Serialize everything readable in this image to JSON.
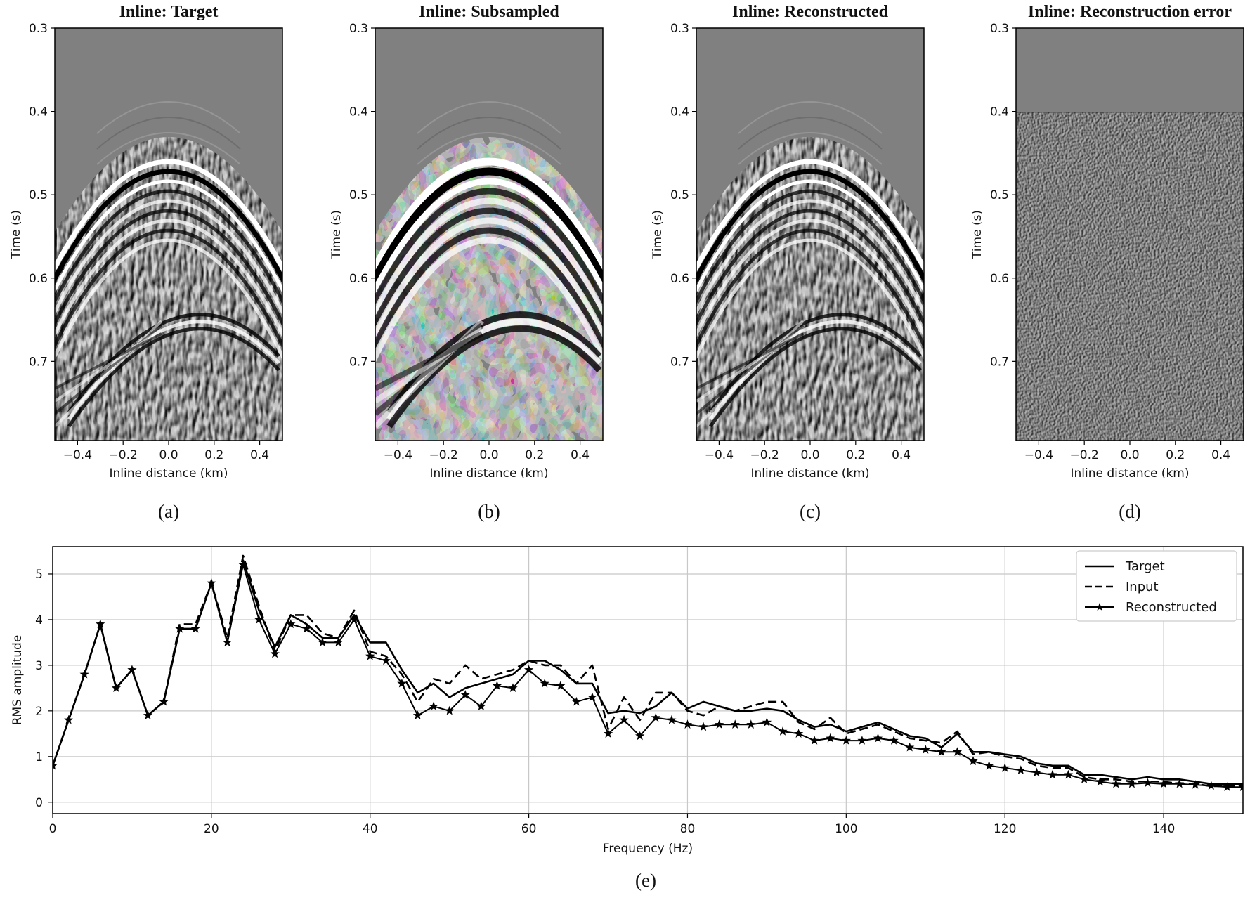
{
  "panels": [
    {
      "id": "a",
      "title": "Inline: Target",
      "caption": "(a)",
      "style": "target"
    },
    {
      "id": "b",
      "title": "Inline: Subsampled",
      "caption": "(b)",
      "style": "subsampled"
    },
    {
      "id": "c",
      "title": "Inline: Reconstructed",
      "caption": "(c)",
      "style": "reconstructed"
    },
    {
      "id": "d",
      "title": "Inline: Reconstruction error",
      "caption": "(d)",
      "style": "error"
    }
  ],
  "panel_axes": {
    "xlabel": "Inline distance (km)",
    "ylabel": "Time (s)",
    "xticks": [
      -0.4,
      -0.2,
      0.0,
      0.2,
      0.4
    ],
    "xtick_labels": [
      "−0.4",
      "−0.2",
      "0.0",
      "0.2",
      "0.4"
    ],
    "yticks": [
      0.3,
      0.4,
      0.5,
      0.6,
      0.7
    ],
    "ytick_labels": [
      "0.3",
      "0.4",
      "0.5",
      "0.6",
      "0.7"
    ],
    "xlim": [
      -0.5,
      0.5
    ],
    "ylim": [
      0.3,
      0.795
    ]
  },
  "chart_data": {
    "type": "line",
    "caption": "(e)",
    "xlabel": "Frequency (Hz)",
    "ylabel": "RMS amplitude",
    "xlim": [
      0,
      150
    ],
    "ylim": [
      -0.25,
      5.6
    ],
    "xticks": [
      0,
      20,
      40,
      60,
      80,
      100,
      120,
      140
    ],
    "yticks": [
      0,
      1,
      2,
      3,
      4,
      5
    ],
    "grid": true,
    "legend_position": "top-right",
    "x": [
      0,
      2,
      4,
      6,
      8,
      10,
      12,
      14,
      16,
      18,
      20,
      22,
      24,
      26,
      28,
      30,
      32,
      34,
      36,
      38,
      40,
      42,
      44,
      46,
      48,
      50,
      52,
      54,
      56,
      58,
      60,
      62,
      64,
      66,
      68,
      70,
      72,
      74,
      76,
      78,
      80,
      82,
      84,
      86,
      88,
      90,
      92,
      94,
      96,
      98,
      100,
      102,
      104,
      106,
      108,
      110,
      112,
      114,
      116,
      118,
      120,
      122,
      124,
      126,
      128,
      130,
      132,
      134,
      136,
      138,
      140,
      142,
      144,
      146,
      148,
      150
    ],
    "series": [
      {
        "name": "Target",
        "style": "solid",
        "values": [
          0.8,
          1.8,
          2.8,
          3.9,
          2.5,
          2.9,
          1.9,
          2.2,
          3.8,
          3.8,
          4.8,
          3.5,
          5.3,
          4.2,
          3.4,
          4.1,
          3.9,
          3.6,
          3.6,
          4.1,
          3.5,
          3.5,
          2.9,
          2.4,
          2.6,
          2.3,
          2.5,
          2.6,
          2.7,
          2.8,
          3.1,
          3.1,
          2.9,
          2.6,
          2.6,
          1.95,
          2.0,
          1.95,
          2.1,
          2.4,
          2.05,
          2.2,
          2.1,
          2.0,
          2.0,
          2.05,
          2.0,
          1.8,
          1.65,
          1.7,
          1.55,
          1.65,
          1.75,
          1.6,
          1.45,
          1.4,
          1.2,
          1.5,
          1.1,
          1.1,
          1.05,
          1.0,
          0.85,
          0.8,
          0.8,
          0.6,
          0.6,
          0.55,
          0.5,
          0.55,
          0.5,
          0.5,
          0.45,
          0.4,
          0.4,
          0.4
        ]
      },
      {
        "name": "Input",
        "style": "dashed",
        "values": [
          0.8,
          1.8,
          2.8,
          3.9,
          2.5,
          2.9,
          1.9,
          2.2,
          3.9,
          3.9,
          4.8,
          3.6,
          5.4,
          4.3,
          3.3,
          4.1,
          4.1,
          3.7,
          3.6,
          4.2,
          3.3,
          3.2,
          2.8,
          2.2,
          2.7,
          2.6,
          3.0,
          2.7,
          2.8,
          2.9,
          3.1,
          3.0,
          3.0,
          2.6,
          3.0,
          1.6,
          2.3,
          1.8,
          2.4,
          2.4,
          2.0,
          1.9,
          2.1,
          2.0,
          2.1,
          2.2,
          2.2,
          1.75,
          1.6,
          1.85,
          1.5,
          1.6,
          1.7,
          1.55,
          1.4,
          1.35,
          1.3,
          1.55,
          1.05,
          1.1,
          1.0,
          0.95,
          0.8,
          0.75,
          0.75,
          0.55,
          0.5,
          0.5,
          0.45,
          0.45,
          0.45,
          0.4,
          0.4,
          0.35,
          0.35,
          0.35
        ]
      },
      {
        "name": "Reconstructed",
        "style": "star",
        "values": [
          0.8,
          1.8,
          2.8,
          3.9,
          2.5,
          2.9,
          1.9,
          2.2,
          3.8,
          3.8,
          4.8,
          3.5,
          5.2,
          4.0,
          3.25,
          3.9,
          3.8,
          3.5,
          3.5,
          4.0,
          3.2,
          3.1,
          2.6,
          1.9,
          2.1,
          2.0,
          2.35,
          2.1,
          2.55,
          2.5,
          2.9,
          2.6,
          2.55,
          2.2,
          2.3,
          1.5,
          1.8,
          1.45,
          1.85,
          1.8,
          1.7,
          1.65,
          1.7,
          1.7,
          1.7,
          1.75,
          1.55,
          1.5,
          1.35,
          1.4,
          1.35,
          1.35,
          1.4,
          1.35,
          1.2,
          1.15,
          1.1,
          1.1,
          0.9,
          0.8,
          0.75,
          0.7,
          0.65,
          0.6,
          0.6,
          0.5,
          0.45,
          0.4,
          0.4,
          0.42,
          0.4,
          0.4,
          0.38,
          0.36,
          0.33,
          0.33
        ]
      }
    ]
  }
}
